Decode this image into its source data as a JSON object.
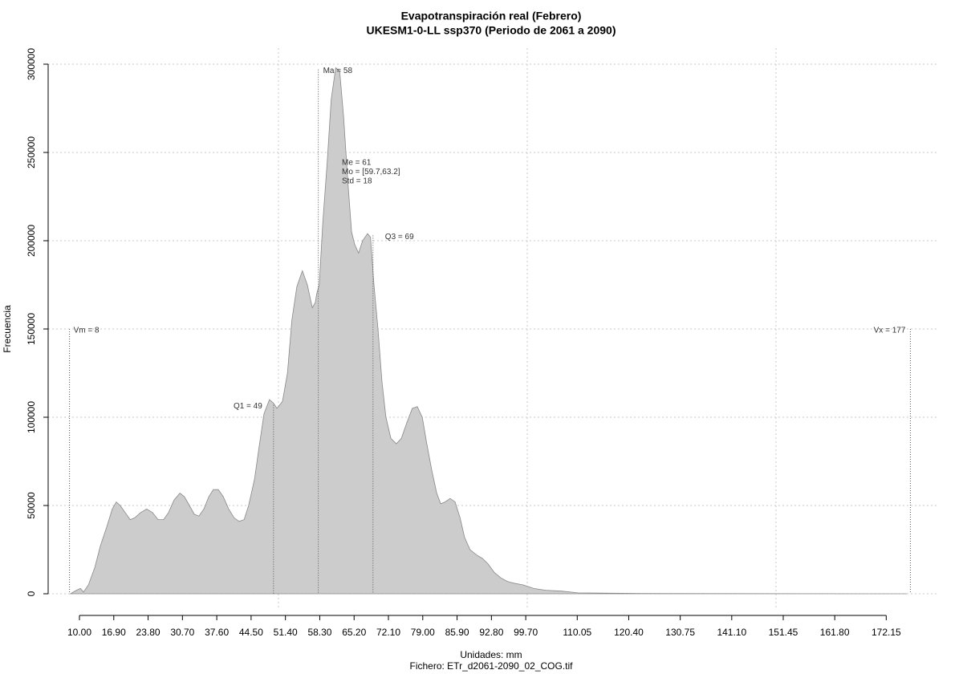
{
  "chart_data": {
    "type": "area",
    "title": "Evapotranspiración real (Febrero)",
    "subtitle": "UKESM1-0-LL ssp370 (Periodo de 2061 a 2090)",
    "x_label": "Unidades: mm",
    "caption": "Fichero: ETr_d2061-2090_02_COG.tif",
    "y_label": "Frecuencia",
    "color": "#cccccc",
    "x": [
      8.2,
      9.4,
      10.2,
      10.8,
      11.8,
      13.1,
      14.2,
      15.5,
      16.6,
      17.4,
      18.2,
      19.2,
      20.2,
      21.1,
      22.3,
      23.5,
      24.7,
      25.8,
      26.9,
      27.9,
      29.0,
      30.2,
      31.1,
      32.1,
      33.1,
      34.0,
      35.0,
      36.0,
      36.9,
      37.9,
      38.9,
      40.0,
      41.1,
      42.1,
      43.1,
      44.0,
      45.2,
      46.1,
      47.1,
      48.2,
      49.0,
      49.7,
      50.8,
      51.8,
      52.7,
      53.7,
      54.8,
      55.8,
      56.8,
      57.4,
      57.7,
      58.2,
      58.9,
      59.8,
      60.6,
      61.5,
      62.3,
      63.1,
      63.9,
      64.7,
      65.3,
      66.1,
      66.9,
      67.9,
      68.5,
      69.2,
      70.0,
      70.8,
      71.6,
      72.6,
      73.7,
      74.7,
      75.8,
      76.9,
      77.9,
      78.9,
      79.8,
      80.8,
      81.8,
      82.6,
      83.5,
      84.5,
      85.5,
      86.5,
      87.4,
      88.5,
      89.8,
      91.0,
      92.1,
      93.4,
      94.7,
      96.0,
      97.3,
      99.2,
      101.3,
      103.7,
      106.9,
      110.2,
      116.6,
      123.1,
      139.2,
      155.3,
      168.2,
      176.3
    ],
    "values": [
      0,
      2000,
      3000,
      1000,
      5000,
      15000,
      27000,
      38000,
      48000,
      52000,
      50000,
      46000,
      42000,
      43000,
      46000,
      48000,
      46000,
      42000,
      42000,
      46000,
      53000,
      57000,
      55000,
      50000,
      45000,
      44000,
      48000,
      55000,
      59000,
      59000,
      55000,
      48000,
      43000,
      41000,
      42000,
      50000,
      65000,
      83000,
      102000,
      110000,
      108000,
      105000,
      109000,
      125000,
      155000,
      174000,
      183000,
      175000,
      162000,
      165000,
      170000,
      175000,
      210000,
      245000,
      280000,
      298000,
      296000,
      270000,
      235000,
      205000,
      198000,
      193000,
      200000,
      204000,
      202000,
      175000,
      150000,
      120000,
      100000,
      88000,
      85000,
      88000,
      97000,
      105000,
      106000,
      100000,
      85000,
      70000,
      57000,
      51000,
      52000,
      54000,
      52000,
      43000,
      32000,
      25000,
      22000,
      20000,
      17000,
      12000,
      9000,
      7000,
      6000,
      5000,
      3000,
      2000,
      1500,
      500,
      300,
      150,
      80,
      50,
      20,
      0
    ],
    "xlim": [
      0,
      180
    ],
    "ylim": [
      0,
      300000
    ],
    "xticks": [
      {
        "value": 10,
        "label": "10.00"
      },
      {
        "value": 16.9,
        "label": "16.90"
      },
      {
        "value": 23.8,
        "label": "23.80"
      },
      {
        "value": 30.7,
        "label": "30.70"
      },
      {
        "value": 37.6,
        "label": "37.60"
      },
      {
        "value": 44.5,
        "label": "44.50"
      },
      {
        "value": 51.4,
        "label": "51.40"
      },
      {
        "value": 58.3,
        "label": "58.30"
      },
      {
        "value": 65.2,
        "label": "65.20"
      },
      {
        "value": 72.1,
        "label": "72.10"
      },
      {
        "value": 79,
        "label": "79.00"
      },
      {
        "value": 85.9,
        "label": "85.90"
      },
      {
        "value": 92.8,
        "label": "92.80"
      },
      {
        "value": 99.7,
        "label": "99.70"
      },
      110.05,
      {
        "value": 120.4,
        "label": "120.40"
      },
      130.75,
      {
        "value": 141.1,
        "label": "141.10"
      },
      151.45,
      {
        "value": 161.8,
        "label": "161.80"
      },
      172.15
    ],
    "yticks": [
      0,
      50000,
      100000,
      150000,
      200000,
      250000,
      300000
    ],
    "x_gridlines": [
      50,
      100,
      150
    ],
    "grid": true,
    "annotations": [
      {
        "text": "Vm = 8",
        "x": 8,
        "y": 150000
      },
      {
        "text": "Q1 = 49",
        "x": 49,
        "y": 107000
      },
      {
        "text": "Ma = 58",
        "x": 58,
        "y": 297000
      },
      {
        "text": "Q3 = 69",
        "x": 69,
        "y": 203000
      },
      {
        "text": "Vx = 177",
        "x": 177,
        "y": 150000
      }
    ],
    "stats_text": [
      "Me = 61",
      "Mo = [59.7,63.2]",
      "Std = 18"
    ]
  }
}
